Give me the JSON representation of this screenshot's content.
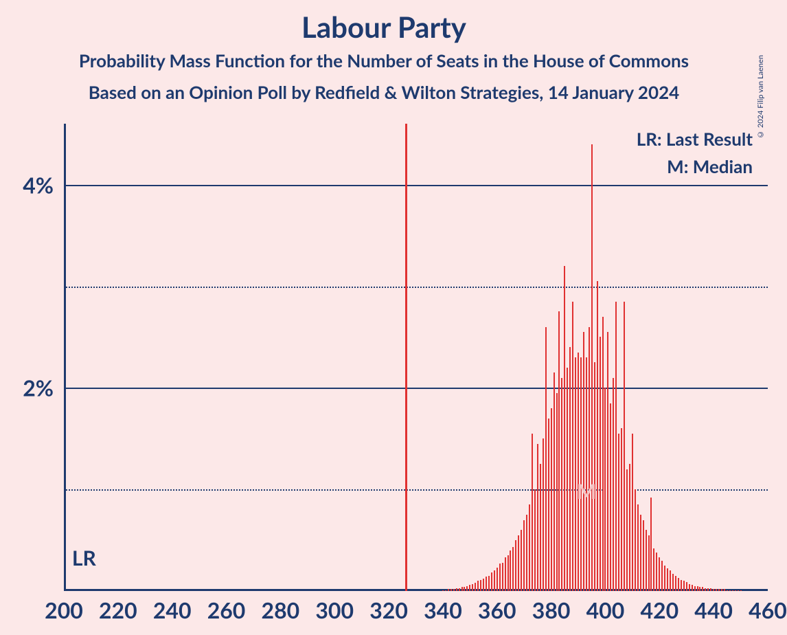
{
  "title": "Labour Party",
  "subtitle1": "Probability Mass Function for the Number of Seats in the House of Commons",
  "subtitle2": "Based on an Opinion Poll by Redfield & Wilton Strategies, 14 January 2024",
  "copyright": "© 2024 Filip van Laenen",
  "legend": {
    "lr": "LR: Last Result",
    "m": "M: Median"
  },
  "markers": {
    "lr_text": "LR",
    "lr_x": 202,
    "m_text": "M",
    "m_x": 393,
    "majority_line_x": 326
  },
  "chart": {
    "type": "histogram",
    "x_min": 200,
    "x_max": 460,
    "y_min": 0,
    "y_max": 4.6,
    "y_ticks_major": [
      2,
      4
    ],
    "y_ticks_minor": [
      1,
      3
    ],
    "x_ticks": [
      200,
      220,
      240,
      260,
      280,
      300,
      320,
      340,
      360,
      380,
      400,
      420,
      440,
      460
    ],
    "y_tick_labels": {
      "2": "2%",
      "4": "4%"
    },
    "background_color": "#fce8e8",
    "axis_color": "#1e3a6e",
    "text_color": "#1e3a6e",
    "bar_color": "#e03131",
    "grid_color": "#1e3a6e",
    "title_fontsize": 42,
    "subtitle_fontsize": 26,
    "tick_fontsize": 32,
    "bars": [
      {
        "x": 340,
        "y": 0.01
      },
      {
        "x": 341,
        "y": 0.01
      },
      {
        "x": 342,
        "y": 0.02
      },
      {
        "x": 343,
        "y": 0.02
      },
      {
        "x": 344,
        "y": 0.02
      },
      {
        "x": 345,
        "y": 0.03
      },
      {
        "x": 346,
        "y": 0.03
      },
      {
        "x": 347,
        "y": 0.04
      },
      {
        "x": 348,
        "y": 0.04
      },
      {
        "x": 349,
        "y": 0.05
      },
      {
        "x": 350,
        "y": 0.06
      },
      {
        "x": 351,
        "y": 0.07
      },
      {
        "x": 352,
        "y": 0.08
      },
      {
        "x": 353,
        "y": 0.1
      },
      {
        "x": 354,
        "y": 0.11
      },
      {
        "x": 355,
        "y": 0.12
      },
      {
        "x": 356,
        "y": 0.14
      },
      {
        "x": 357,
        "y": 0.15
      },
      {
        "x": 358,
        "y": 0.18
      },
      {
        "x": 359,
        "y": 0.2
      },
      {
        "x": 360,
        "y": 0.23
      },
      {
        "x": 361,
        "y": 0.27
      },
      {
        "x": 362,
        "y": 0.28
      },
      {
        "x": 363,
        "y": 0.33
      },
      {
        "x": 364,
        "y": 0.35
      },
      {
        "x": 365,
        "y": 0.4
      },
      {
        "x": 366,
        "y": 0.43
      },
      {
        "x": 367,
        "y": 0.5
      },
      {
        "x": 368,
        "y": 0.55
      },
      {
        "x": 369,
        "y": 0.6
      },
      {
        "x": 370,
        "y": 0.7
      },
      {
        "x": 371,
        "y": 0.75
      },
      {
        "x": 372,
        "y": 0.85
      },
      {
        "x": 373,
        "y": 1.55
      },
      {
        "x": 374,
        "y": 1.0
      },
      {
        "x": 375,
        "y": 1.45
      },
      {
        "x": 376,
        "y": 1.25
      },
      {
        "x": 377,
        "y": 1.5
      },
      {
        "x": 378,
        "y": 2.6
      },
      {
        "x": 379,
        "y": 1.7
      },
      {
        "x": 380,
        "y": 1.8
      },
      {
        "x": 381,
        "y": 2.15
      },
      {
        "x": 382,
        "y": 1.95
      },
      {
        "x": 383,
        "y": 2.75
      },
      {
        "x": 384,
        "y": 2.1
      },
      {
        "x": 385,
        "y": 3.2
      },
      {
        "x": 386,
        "y": 2.2
      },
      {
        "x": 387,
        "y": 2.4
      },
      {
        "x": 388,
        "y": 2.85
      },
      {
        "x": 389,
        "y": 2.3
      },
      {
        "x": 390,
        "y": 2.35
      },
      {
        "x": 391,
        "y": 2.3
      },
      {
        "x": 392,
        "y": 2.55
      },
      {
        "x": 393,
        "y": 2.3
      },
      {
        "x": 394,
        "y": 2.6
      },
      {
        "x": 395,
        "y": 4.4
      },
      {
        "x": 396,
        "y": 2.25
      },
      {
        "x": 397,
        "y": 3.05
      },
      {
        "x": 398,
        "y": 2.5
      },
      {
        "x": 399,
        "y": 2.7
      },
      {
        "x": 400,
        "y": 2.0
      },
      {
        "x": 401,
        "y": 2.55
      },
      {
        "x": 402,
        "y": 1.85
      },
      {
        "x": 403,
        "y": 2.1
      },
      {
        "x": 404,
        "y": 2.85
      },
      {
        "x": 405,
        "y": 1.55
      },
      {
        "x": 406,
        "y": 1.6
      },
      {
        "x": 407,
        "y": 2.85
      },
      {
        "x": 408,
        "y": 1.2
      },
      {
        "x": 409,
        "y": 1.25
      },
      {
        "x": 410,
        "y": 1.55
      },
      {
        "x": 411,
        "y": 1.0
      },
      {
        "x": 412,
        "y": 0.85
      },
      {
        "x": 413,
        "y": 0.75
      },
      {
        "x": 414,
        "y": 0.7
      },
      {
        "x": 415,
        "y": 0.6
      },
      {
        "x": 416,
        "y": 0.55
      },
      {
        "x": 417,
        "y": 0.92
      },
      {
        "x": 418,
        "y": 0.42
      },
      {
        "x": 419,
        "y": 0.38
      },
      {
        "x": 420,
        "y": 0.33
      },
      {
        "x": 421,
        "y": 0.3
      },
      {
        "x": 422,
        "y": 0.25
      },
      {
        "x": 423,
        "y": 0.22
      },
      {
        "x": 424,
        "y": 0.2
      },
      {
        "x": 425,
        "y": 0.17
      },
      {
        "x": 426,
        "y": 0.15
      },
      {
        "x": 427,
        "y": 0.13
      },
      {
        "x": 428,
        "y": 0.11
      },
      {
        "x": 429,
        "y": 0.1
      },
      {
        "x": 430,
        "y": 0.09
      },
      {
        "x": 431,
        "y": 0.07
      },
      {
        "x": 432,
        "y": 0.06
      },
      {
        "x": 433,
        "y": 0.05
      },
      {
        "x": 434,
        "y": 0.05
      },
      {
        "x": 435,
        "y": 0.04
      },
      {
        "x": 436,
        "y": 0.04
      },
      {
        "x": 437,
        "y": 0.03
      },
      {
        "x": 438,
        "y": 0.03
      },
      {
        "x": 439,
        "y": 0.03
      },
      {
        "x": 440,
        "y": 0.02
      },
      {
        "x": 441,
        "y": 0.02
      },
      {
        "x": 442,
        "y": 0.02
      },
      {
        "x": 443,
        "y": 0.02
      },
      {
        "x": 444,
        "y": 0.02
      },
      {
        "x": 445,
        "y": 0.01
      },
      {
        "x": 446,
        "y": 0.01
      },
      {
        "x": 447,
        "y": 0.01
      },
      {
        "x": 448,
        "y": 0.01
      },
      {
        "x": 449,
        "y": 0.01
      },
      {
        "x": 450,
        "y": 0.01
      }
    ]
  }
}
